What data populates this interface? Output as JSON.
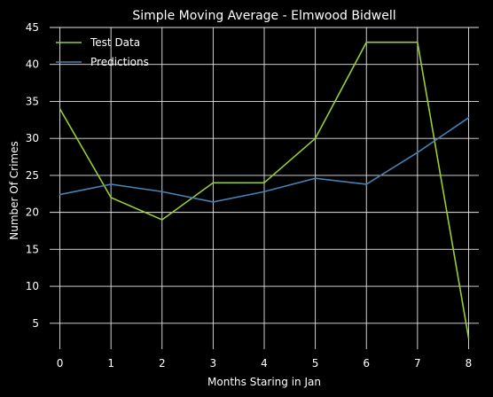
{
  "chart_data": {
    "type": "line",
    "title": "Simple Moving Average - Elmwood Bidwell",
    "xlabel": "Months Staring in Jan",
    "ylabel": "Number Of Crimes",
    "x": [
      0,
      1,
      2,
      3,
      4,
      5,
      6,
      7,
      8
    ],
    "xlim": [
      -0.2,
      8.2
    ],
    "ylim": [
      1.5,
      45
    ],
    "xticks": [
      0,
      1,
      2,
      3,
      4,
      5,
      6,
      7,
      8
    ],
    "yticks": [
      5,
      10,
      15,
      20,
      25,
      30,
      35,
      40,
      45
    ],
    "grid": true,
    "legend_position": "top-left",
    "background": "#000000",
    "series": [
      {
        "name": "Test Data",
        "color": "#9acd32",
        "values": [
          34,
          22,
          19,
          24,
          24,
          30,
          43,
          43,
          3
        ]
      },
      {
        "name": "Predictions",
        "color": "#4682b4",
        "values": [
          22.4,
          23.8,
          22.8,
          21.4,
          22.8,
          24.6,
          23.8,
          28.1,
          32.8
        ]
      }
    ]
  }
}
